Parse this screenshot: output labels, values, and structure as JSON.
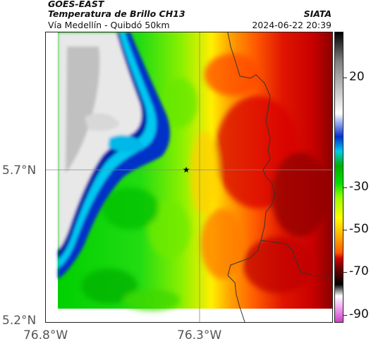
{
  "header": {
    "satellite": "GOES-EAST",
    "product": "Temperatura de Brillo CH13",
    "route": "Vía Medellín - Quibdó 50km",
    "agency": "SIATA",
    "datetime": "2024-06-22 20:39"
  },
  "map": {
    "lat_labels": [
      "5.7°N",
      "5.2°N"
    ],
    "lon_labels": [
      "76.8°W",
      "76.3°W"
    ],
    "marker": "star",
    "gridlines": true
  },
  "colorbar": {
    "ticks": [
      "20",
      "-30",
      "-50",
      "-70",
      "-90"
    ],
    "colors": [
      "#d03fc8",
      "#f0a8f0",
      "#ffffff",
      "#000000",
      "#7a0000",
      "#d00000",
      "#ff5a00",
      "#ffa500",
      "#ffff00",
      "#9aff00",
      "#00e000",
      "#00b000",
      "#00c8e8",
      "#0030d0",
      "#ffffff",
      "#808080",
      "#000000"
    ]
  }
}
